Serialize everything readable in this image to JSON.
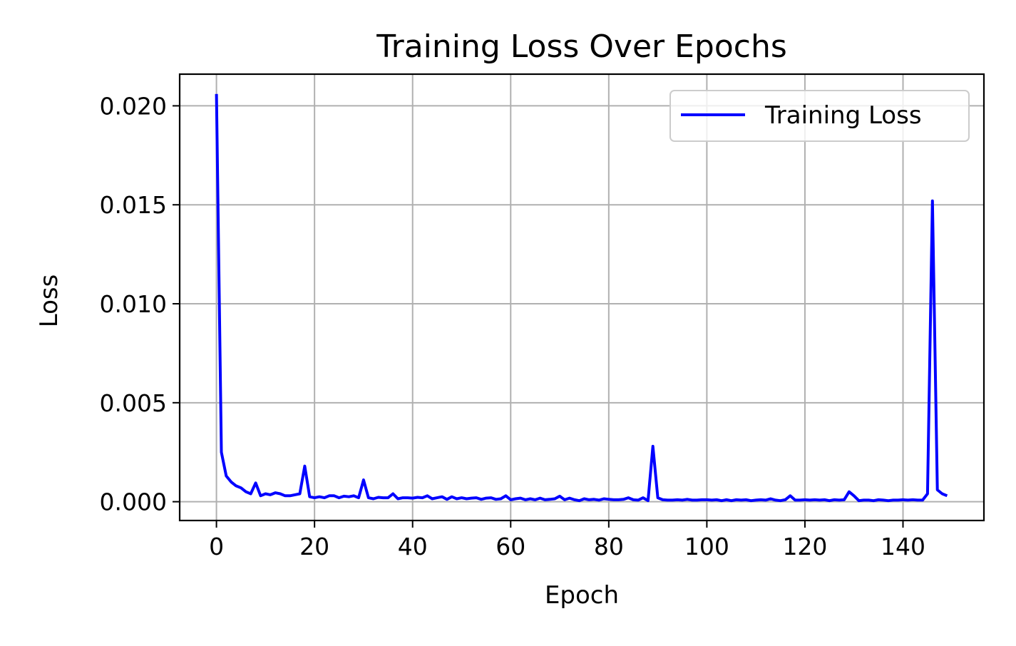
{
  "chart_data": {
    "type": "line",
    "title": "Training Loss Over Epochs",
    "xlabel": "Epoch",
    "ylabel": "Loss",
    "xlim": [
      -7.5,
      156.5
    ],
    "ylim": [
      -0.00095,
      0.0216
    ],
    "xticks": [
      0,
      20,
      40,
      60,
      80,
      100,
      120,
      140
    ],
    "xtick_labels": [
      "0",
      "20",
      "40",
      "60",
      "80",
      "100",
      "120",
      "140"
    ],
    "yticks": [
      0.0,
      0.005,
      0.01,
      0.015,
      0.02
    ],
    "ytick_labels": [
      "0.000",
      "0.005",
      "0.010",
      "0.015",
      "0.020"
    ],
    "grid": true,
    "legend_position": "top-right",
    "series": [
      {
        "name": "Training Loss",
        "color": "#0000ff",
        "x": [
          0,
          1,
          2,
          3,
          4,
          5,
          6,
          7,
          8,
          9,
          10,
          11,
          12,
          13,
          14,
          15,
          16,
          17,
          18,
          19,
          20,
          21,
          22,
          23,
          24,
          25,
          26,
          27,
          28,
          29,
          30,
          31,
          32,
          33,
          34,
          35,
          36,
          37,
          38,
          39,
          40,
          41,
          42,
          43,
          44,
          45,
          46,
          47,
          48,
          49,
          50,
          51,
          52,
          53,
          54,
          55,
          56,
          57,
          58,
          59,
          60,
          61,
          62,
          63,
          64,
          65,
          66,
          67,
          68,
          69,
          70,
          71,
          72,
          73,
          74,
          75,
          76,
          77,
          78,
          79,
          80,
          81,
          82,
          83,
          84,
          85,
          86,
          87,
          88,
          89,
          90,
          91,
          92,
          93,
          94,
          95,
          96,
          97,
          98,
          99,
          100,
          101,
          102,
          103,
          104,
          105,
          106,
          107,
          108,
          109,
          110,
          111,
          112,
          113,
          114,
          115,
          116,
          117,
          118,
          119,
          120,
          121,
          122,
          123,
          124,
          125,
          126,
          127,
          128,
          129,
          130,
          131,
          132,
          133,
          134,
          135,
          136,
          137,
          138,
          139,
          140,
          141,
          142,
          143,
          144,
          145,
          146,
          147,
          148,
          149
        ],
        "y": [
          0.0206,
          0.0025,
          0.0013,
          0.001,
          0.0008,
          0.0007,
          0.0005,
          0.0004,
          0.00095,
          0.0003,
          0.0004,
          0.00035,
          0.00045,
          0.0004,
          0.0003,
          0.0003,
          0.00035,
          0.0004,
          0.0018,
          0.00025,
          0.0002,
          0.00025,
          0.0002,
          0.0003,
          0.0003,
          0.0002,
          0.00028,
          0.00025,
          0.0003,
          0.0002,
          0.0011,
          0.0002,
          0.00015,
          0.00022,
          0.0002,
          0.0002,
          0.0004,
          0.00015,
          0.0002,
          0.0002,
          0.00018,
          0.00022,
          0.0002,
          0.0003,
          0.00015,
          0.0002,
          0.00025,
          0.00012,
          0.00025,
          0.00015,
          0.0002,
          0.00015,
          0.00018,
          0.0002,
          0.00012,
          0.00018,
          0.0002,
          0.00012,
          0.00015,
          0.0003,
          0.0001,
          0.00015,
          0.00018,
          0.0001,
          0.00015,
          0.0001,
          0.00018,
          0.0001,
          0.00012,
          0.00015,
          0.00028,
          0.0001,
          0.00018,
          0.0001,
          5e-05,
          0.00015,
          0.0001,
          0.00012,
          8e-05,
          0.00015,
          0.00012,
          0.0001,
          0.0001,
          0.00012,
          0.0002,
          0.0001,
          8e-05,
          0.0002,
          5e-05,
          0.0028,
          0.0002,
          0.0001,
          8e-05,
          8e-05,
          0.0001,
          8e-05,
          0.00012,
          8e-05,
          8e-05,
          0.0001,
          0.0001,
          8e-05,
          0.0001,
          5e-05,
          0.0001,
          5e-05,
          0.0001,
          8e-05,
          0.0001,
          5e-05,
          8e-05,
          0.0001,
          8e-05,
          0.00015,
          8e-05,
          5e-05,
          0.0001,
          0.0003,
          8e-05,
          8e-05,
          0.0001,
          8e-05,
          0.0001,
          8e-05,
          0.0001,
          5e-05,
          0.0001,
          8e-05,
          0.0001,
          0.0005,
          0.0003,
          5e-05,
          8e-05,
          8e-05,
          5e-05,
          0.0001,
          8e-05,
          5e-05,
          8e-05,
          8e-05,
          0.0001,
          8e-05,
          0.0001,
          8e-05,
          8e-05,
          0.0004,
          0.0152,
          0.0006,
          0.0004,
          0.0003
        ]
      }
    ]
  }
}
